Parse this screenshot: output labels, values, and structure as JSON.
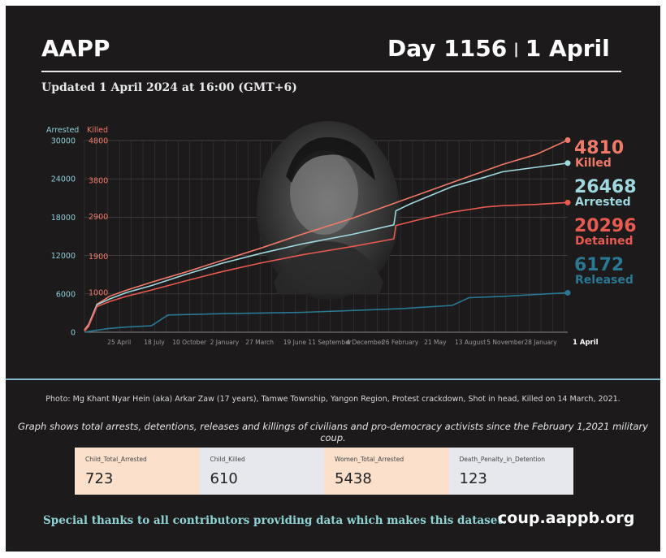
{
  "header": {
    "brand": "AAPP",
    "day_label": "Day 1156",
    "date_label": "1 April",
    "updated": "Updated 1 April 2024 at 16:00 (GMT+6)"
  },
  "chart_data": {
    "type": "line",
    "axes": {
      "left_title": "Arrested",
      "right_title": "Killed",
      "left_ticks": [
        "30000",
        "24000",
        "18000",
        "12000",
        "6000",
        "0"
      ],
      "right_ticks": [
        "4800",
        "3800",
        "2900",
        "1900",
        "1000"
      ],
      "x_ticks": [
        "25 April",
        "18 July",
        "10 October",
        "2 January",
        "27 March",
        "19 June",
        "11 September",
        "4 December",
        "26 February",
        "21 May",
        "13 August",
        "5 November",
        "28 January",
        "1 April"
      ],
      "left_range": [
        0,
        30000
      ],
      "x_range_days": [
        0,
        1156
      ],
      "grid": true
    },
    "x_tick_days": [
      83,
      167,
      251,
      335,
      419,
      503,
      587,
      671,
      755,
      839,
      923,
      1007,
      1091,
      1156
    ],
    "series": [
      {
        "name": "Killed",
        "display_value": "4810",
        "color": "#f07a6a",
        "axis": "right",
        "x": [
          0,
          10,
          30,
          60,
          100,
          160,
          240,
          330,
          420,
          520,
          640,
          760,
          880,
          1000,
          1080,
          1156
        ],
        "y": [
          60,
          200,
          700,
          900,
          1050,
          1250,
          1500,
          1800,
          2100,
          2450,
          2850,
          3300,
          3750,
          4200,
          4450,
          4810
        ]
      },
      {
        "name": "Arrested",
        "display_value": "26468",
        "color": "#9fd8e0",
        "axis": "left",
        "x": [
          0,
          10,
          30,
          60,
          100,
          160,
          240,
          330,
          420,
          520,
          640,
          740,
          745,
          780,
          880,
          960,
          1000,
          1080,
          1156
        ],
        "y": [
          200,
          1000,
          4300,
          5200,
          6200,
          7300,
          9000,
          10800,
          12300,
          13800,
          15300,
          16800,
          19000,
          20100,
          22800,
          24300,
          25100,
          25800,
          26468
        ]
      },
      {
        "name": "Detained",
        "display_value": "20296",
        "color": "#e85a52",
        "axis": "left",
        "x": [
          0,
          10,
          30,
          60,
          100,
          160,
          240,
          330,
          420,
          520,
          640,
          740,
          745,
          800,
          880,
          960,
          1000,
          1080,
          1156
        ],
        "y": [
          150,
          900,
          4000,
          4800,
          5600,
          6600,
          8000,
          9500,
          10800,
          12100,
          13400,
          14600,
          16700,
          17600,
          18800,
          19600,
          19800,
          20000,
          20296
        ]
      },
      {
        "name": "Released",
        "display_value": "6172",
        "color": "#2a7894",
        "axis": "left",
        "x": [
          0,
          10,
          30,
          60,
          100,
          160,
          200,
          330,
          420,
          520,
          640,
          760,
          880,
          920,
          1000,
          1080,
          1156
        ],
        "y": [
          0,
          100,
          300,
          600,
          800,
          1000,
          2700,
          2900,
          3000,
          3100,
          3400,
          3700,
          4200,
          5400,
          5600,
          5900,
          6172
        ]
      }
    ]
  },
  "photo": {
    "caption": "Photo: Mg Khant Nyar Hein (aka) Arkar Zaw (17 years), Tamwe Township, Yangon Region, Protest crackdown, Shot in head, Killed on 14 March, 2021."
  },
  "description": "Graph shows total arrests, detentions, releases and killings of civilians and pro-democracy activists since the February 1,2021 military coup.",
  "stats": [
    {
      "label": "Child_Total_Arrested",
      "value": "723"
    },
    {
      "label": "Child_Killed",
      "value": "610"
    },
    {
      "label": "Women_Total_Arrested",
      "value": "5438"
    },
    {
      "label": "Death_Penalty_in_Detention",
      "value": "123"
    }
  ],
  "footer": {
    "thanks": "Special thanks to all contributors providing data which makes this dataset.",
    "site": "coup.aappb.org"
  }
}
